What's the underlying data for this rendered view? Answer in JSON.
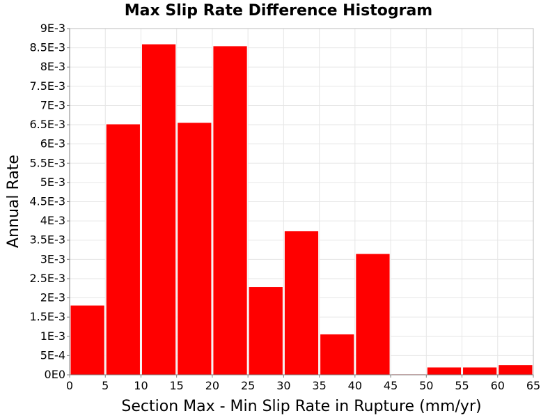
{
  "chart_data": {
    "type": "bar",
    "title": "Max Slip Rate Difference Histogram",
    "xlabel": "Section Max - Min Slip Rate in Rupture (mm/yr)",
    "ylabel": "Annual Rate",
    "xlim": [
      0,
      65
    ],
    "ylim": [
      0,
      0.009
    ],
    "bin_width": 5,
    "bins": [
      {
        "x0": 0,
        "x1": 5,
        "value": 0.00181
      },
      {
        "x0": 5,
        "x1": 10,
        "value": 0.00652
      },
      {
        "x0": 10,
        "x1": 15,
        "value": 0.0086
      },
      {
        "x0": 15,
        "x1": 20,
        "value": 0.00656
      },
      {
        "x0": 20,
        "x1": 25,
        "value": 0.00855
      },
      {
        "x0": 25,
        "x1": 30,
        "value": 0.00229
      },
      {
        "x0": 30,
        "x1": 35,
        "value": 0.00374
      },
      {
        "x0": 35,
        "x1": 40,
        "value": 0.00106
      },
      {
        "x0": 40,
        "x1": 45,
        "value": 0.00315
      },
      {
        "x0": 45,
        "x1": 50,
        "value": 2e-05
      },
      {
        "x0": 50,
        "x1": 55,
        "value": 0.0002
      },
      {
        "x0": 55,
        "x1": 60,
        "value": 0.0002
      },
      {
        "x0": 60,
        "x1": 65,
        "value": 0.00026
      }
    ],
    "x_ticks": [
      {
        "value": 0,
        "label": "0"
      },
      {
        "value": 5,
        "label": "5"
      },
      {
        "value": 10,
        "label": "10"
      },
      {
        "value": 15,
        "label": "15"
      },
      {
        "value": 20,
        "label": "20"
      },
      {
        "value": 25,
        "label": "25"
      },
      {
        "value": 30,
        "label": "30"
      },
      {
        "value": 35,
        "label": "35"
      },
      {
        "value": 40,
        "label": "40"
      },
      {
        "value": 45,
        "label": "45"
      },
      {
        "value": 50,
        "label": "50"
      },
      {
        "value": 55,
        "label": "55"
      },
      {
        "value": 60,
        "label": "60"
      },
      {
        "value": 65,
        "label": "65"
      }
    ],
    "y_ticks": [
      {
        "value": 0,
        "label": "0E0"
      },
      {
        "value": 0.0005,
        "label": "5E-4"
      },
      {
        "value": 0.001,
        "label": "1E-3"
      },
      {
        "value": 0.0015,
        "label": "1.5E-3"
      },
      {
        "value": 0.002,
        "label": "2E-3"
      },
      {
        "value": 0.0025,
        "label": "2.5E-3"
      },
      {
        "value": 0.003,
        "label": "3E-3"
      },
      {
        "value": 0.0035,
        "label": "3.5E-3"
      },
      {
        "value": 0.004,
        "label": "4E-3"
      },
      {
        "value": 0.0045,
        "label": "4.5E-3"
      },
      {
        "value": 0.005,
        "label": "5E-3"
      },
      {
        "value": 0.0055,
        "label": "5.5E-3"
      },
      {
        "value": 0.006,
        "label": "6E-3"
      },
      {
        "value": 0.0065,
        "label": "6.5E-3"
      },
      {
        "value": 0.007,
        "label": "7E-3"
      },
      {
        "value": 0.0075,
        "label": "7.5E-3"
      },
      {
        "value": 0.008,
        "label": "8E-3"
      },
      {
        "value": 0.0085,
        "label": "8.5E-3"
      },
      {
        "value": 0.009,
        "label": "9E-3"
      }
    ],
    "grid": true,
    "legend": "none",
    "colors": {
      "bar_fill": "#ff0000",
      "bar_stroke": "#ffffff"
    }
  }
}
